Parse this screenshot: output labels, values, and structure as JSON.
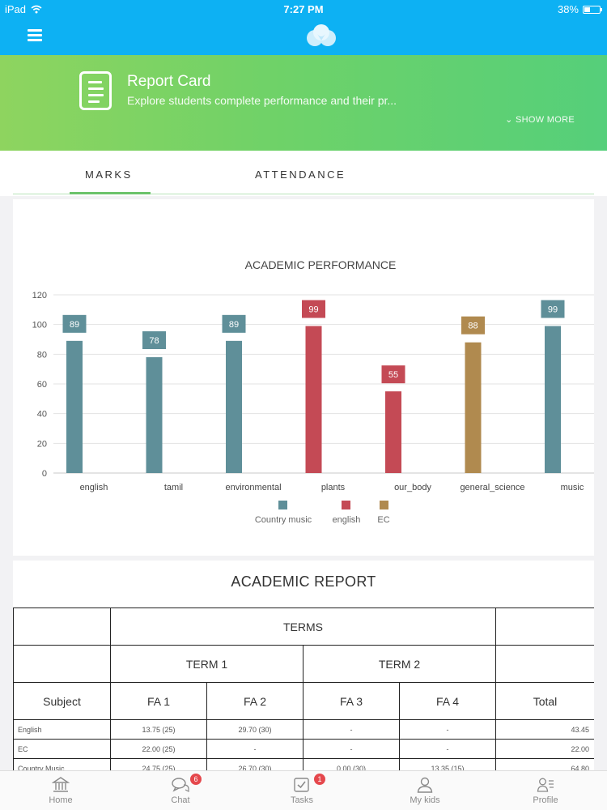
{
  "status_bar": {
    "device": "iPad",
    "time": "7:27 PM",
    "battery": "38%"
  },
  "banner": {
    "title": "Report Card",
    "subtitle": "Explore students complete performance and their pr...",
    "show_more": "SHOW MORE"
  },
  "tabs": [
    {
      "label": "MARKS",
      "active": true
    },
    {
      "label": "ATTENDANCE",
      "active": false
    }
  ],
  "colors": {
    "country_music": "#5f8f99",
    "english": "#c44a55",
    "ec": "#b08a4f",
    "accent": "#0db1f3",
    "tab_active": "#6cc36b"
  },
  "chart_data": {
    "type": "bar",
    "title": "ACADEMIC PERFORMANCE",
    "categories": [
      "english",
      "tamil",
      "environmental",
      "plants",
      "our_body",
      "general_science",
      "music"
    ],
    "ylim": [
      0,
      120
    ],
    "yticks": [
      0,
      20,
      40,
      60,
      80,
      100,
      120
    ],
    "grid": true,
    "legend_position": "bottom",
    "series": [
      {
        "name": "Country music",
        "values": [
          89,
          78,
          89,
          null,
          null,
          null,
          99
        ]
      },
      {
        "name": "english",
        "values": [
          null,
          null,
          null,
          99,
          55,
          null,
          null
        ]
      },
      {
        "name": "EC",
        "values": [
          null,
          null,
          null,
          null,
          null,
          88,
          null
        ]
      }
    ]
  },
  "report": {
    "title": "ACADEMIC REPORT",
    "header_terms": "TERMS",
    "term1": "TERM 1",
    "term2": "TERM 2",
    "columns": [
      "Subject",
      "FA 1",
      "FA 2",
      "FA 3",
      "FA 4",
      "Total"
    ],
    "rows": [
      {
        "subject": "English",
        "fa1": "13.75 (25)",
        "fa2": "29.70 (30)",
        "fa3": "-",
        "fa4": "-",
        "total": "43.45"
      },
      {
        "subject": "EC",
        "fa1": "22.00 (25)",
        "fa2": "-",
        "fa3": "-",
        "fa4": "-",
        "total": "22.00"
      },
      {
        "subject": "Country Music",
        "fa1": "24.75 (25)",
        "fa2": "26.70 (30)",
        "fa3": "0.00 (30)",
        "fa4": "13.35 (15)",
        "total": "64.80"
      }
    ]
  },
  "bottom_nav": [
    {
      "label": "Home",
      "icon": "bank-icon",
      "badge": ""
    },
    {
      "label": "Chat",
      "icon": "chat-icon",
      "badge": "6"
    },
    {
      "label": "Tasks",
      "icon": "checkbox-icon",
      "badge": "1"
    },
    {
      "label": "My kids",
      "icon": "person-icon",
      "badge": ""
    },
    {
      "label": "Profile",
      "icon": "profile-icon",
      "badge": ""
    }
  ]
}
